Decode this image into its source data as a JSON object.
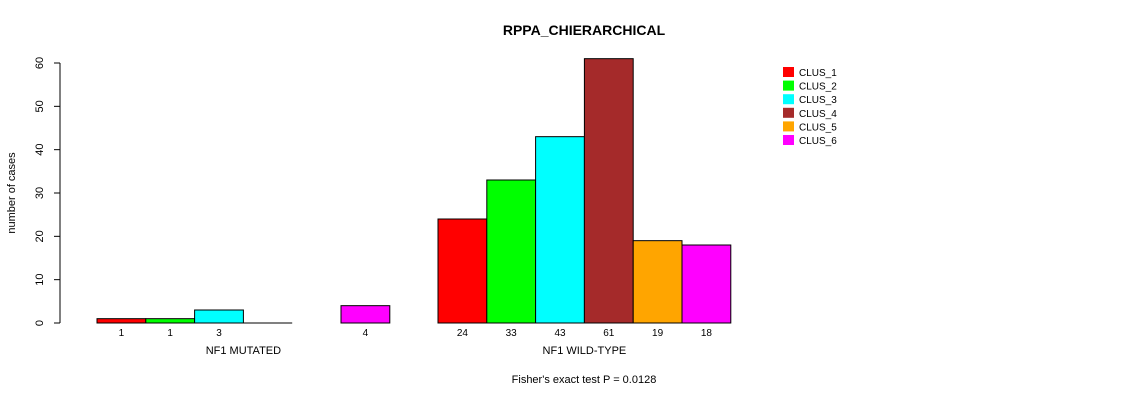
{
  "chart_data": {
    "type": "bar",
    "title": "RPPA_CHIERARCHICAL",
    "ylabel": "number of cases",
    "ylim": [
      0,
      60
    ],
    "yticks": [
      0,
      10,
      20,
      30,
      40,
      50,
      60
    ],
    "grid": false,
    "legend_position": "top-right",
    "groups": [
      {
        "label": "NF1 MUTATED",
        "values": [
          1,
          1,
          3,
          0,
          4
        ],
        "bar_labels": [
          "1",
          "1",
          "3",
          "",
          "4"
        ],
        "clusters": [
          "CLUS_1",
          "CLUS_2",
          "CLUS_3",
          "CLUS_4",
          "CLUS_6"
        ]
      },
      {
        "label": "NF1 WILD-TYPE",
        "values": [
          24,
          33,
          43,
          61,
          19,
          18
        ],
        "bar_labels": [
          "24",
          "33",
          "43",
          "61",
          "19",
          "18"
        ],
        "clusters": [
          "CLUS_1",
          "CLUS_2",
          "CLUS_3",
          "CLUS_4",
          "CLUS_5",
          "CLUS_6"
        ]
      }
    ],
    "series": [
      {
        "name": "CLUS_1",
        "color": "#ff0000"
      },
      {
        "name": "CLUS_2",
        "color": "#00ff00"
      },
      {
        "name": "CLUS_3",
        "color": "#00ffff"
      },
      {
        "name": "CLUS_4",
        "color": "#a52a2a"
      },
      {
        "name": "CLUS_5",
        "color": "#ffa500"
      },
      {
        "name": "CLUS_6",
        "color": "#ff00ff"
      }
    ],
    "annotation": "Fisher's exact test P = 0.0128"
  }
}
